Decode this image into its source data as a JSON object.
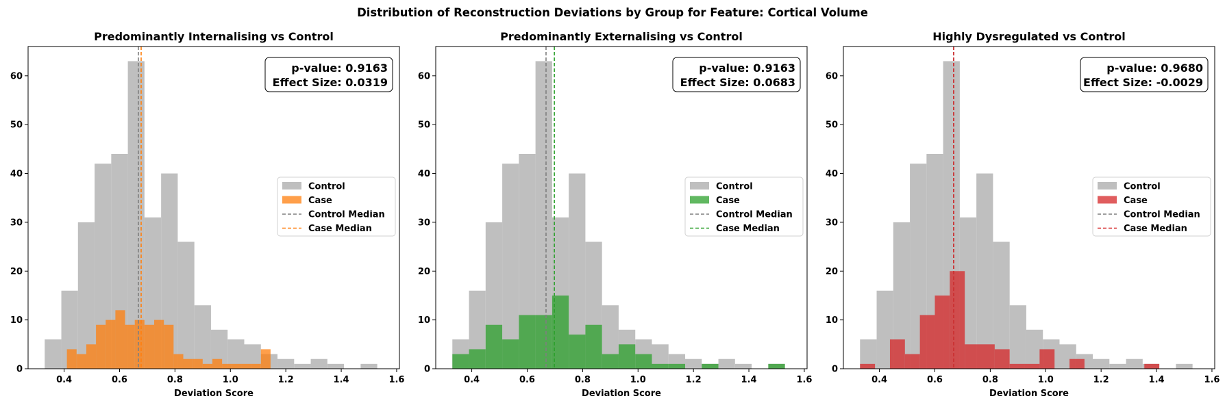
{
  "figure": {
    "suptitle": "Distribution of Reconstruction Deviations by Group for Feature: Cortical Volume"
  },
  "legend_labels": {
    "control": "Control",
    "case": "Case",
    "control_median": "Control Median",
    "case_median": "Case Median"
  },
  "colors": {
    "control": "#bfbfbf",
    "control_median": "#7f7f7f",
    "axes": "#000000"
  },
  "chart_data": [
    {
      "type": "bar",
      "title": "Predominantly Internalising vs Control",
      "xlabel": "Deviation Score",
      "ylabel": "",
      "xlim": [
        0.27,
        1.61
      ],
      "ylim": [
        0,
        66
      ],
      "xticks": [
        "0.4",
        "0.6",
        "0.8",
        "1.0",
        "1.2",
        "1.4",
        "1.6"
      ],
      "yticks": [
        "0",
        "10",
        "20",
        "30",
        "40",
        "50",
        "60"
      ],
      "legend_position": "center-right",
      "case_color": "#ff7f0e",
      "control_hist": {
        "edges": [
          0.33,
          0.39,
          0.45,
          0.51,
          0.57,
          0.63,
          0.69,
          0.75,
          0.81,
          0.87,
          0.93,
          0.99,
          1.05,
          1.11,
          1.17,
          1.23,
          1.29,
          1.35,
          1.41,
          1.47,
          1.53,
          1.59
        ],
        "counts": [
          6,
          16,
          30,
          42,
          44,
          63,
          31,
          40,
          26,
          13,
          8,
          6,
          5,
          3,
          2,
          1,
          2,
          1,
          0,
          1,
          0
        ]
      },
      "case_hist": {
        "edges": [
          0.41,
          0.445,
          0.48,
          0.515,
          0.55,
          0.585,
          0.62,
          0.655,
          0.69,
          0.725,
          0.76,
          0.795,
          0.83,
          0.865,
          0.9,
          0.935,
          0.97,
          1.005,
          1.04,
          1.075,
          1.11,
          1.145
        ],
        "counts": [
          4,
          3,
          5,
          9,
          10,
          12,
          9,
          10,
          9,
          10,
          9,
          3,
          2,
          2,
          1,
          2,
          1,
          1,
          1,
          1,
          4
        ]
      },
      "control_median": 0.668,
      "case_median": 0.678,
      "stats": {
        "p_value": "p-value: 0.9163",
        "effect_size": "Effect Size: 0.0319"
      }
    },
    {
      "type": "bar",
      "title": "Predominantly Externalising vs Control",
      "xlabel": "Deviation Score",
      "ylabel": "",
      "xlim": [
        0.27,
        1.61
      ],
      "ylim": [
        0,
        66
      ],
      "xticks": [
        "0.4",
        "0.6",
        "0.8",
        "1.0",
        "1.2",
        "1.4",
        "1.6"
      ],
      "yticks": [
        "0",
        "10",
        "20",
        "30",
        "40",
        "50",
        "60"
      ],
      "legend_position": "center-right",
      "case_color": "#2ca02c",
      "control_hist": {
        "edges": [
          0.33,
          0.39,
          0.45,
          0.51,
          0.57,
          0.63,
          0.69,
          0.75,
          0.81,
          0.87,
          0.93,
          0.99,
          1.05,
          1.11,
          1.17,
          1.23,
          1.29,
          1.35,
          1.41,
          1.47,
          1.53,
          1.59
        ],
        "counts": [
          6,
          16,
          30,
          42,
          44,
          63,
          31,
          40,
          26,
          13,
          8,
          6,
          5,
          3,
          2,
          1,
          2,
          1,
          0,
          1,
          0
        ]
      },
      "case_hist": {
        "edges": [
          0.33,
          0.39,
          0.45,
          0.51,
          0.57,
          0.63,
          0.69,
          0.75,
          0.81,
          0.87,
          0.93,
          0.99,
          1.05,
          1.11,
          1.17,
          1.23,
          1.29,
          1.35,
          1.41,
          1.47,
          1.53,
          1.59
        ],
        "counts": [
          3,
          4,
          9,
          6,
          11,
          11,
          15,
          7,
          9,
          3,
          5,
          3,
          1,
          1,
          0,
          1,
          0,
          0,
          0,
          1,
          0
        ]
      },
      "control_median": 0.668,
      "case_median": 0.698,
      "stats": {
        "p_value": "p-value: 0.9163",
        "effect_size": "Effect Size: 0.0683"
      }
    },
    {
      "type": "bar",
      "title": "Highly Dysregulated vs Control",
      "xlabel": "Deviation Score",
      "ylabel": "",
      "xlim": [
        0.27,
        1.61
      ],
      "ylim": [
        0,
        66
      ],
      "xticks": [
        "0.4",
        "0.6",
        "0.8",
        "1.0",
        "1.2",
        "1.4",
        "1.6"
      ],
      "yticks": [
        "0",
        "10",
        "20",
        "30",
        "40",
        "50",
        "60"
      ],
      "legend_position": "center-right",
      "case_color": "#d62728",
      "control_hist": {
        "edges": [
          0.33,
          0.39,
          0.45,
          0.51,
          0.57,
          0.63,
          0.69,
          0.75,
          0.81,
          0.87,
          0.93,
          0.99,
          1.05,
          1.11,
          1.17,
          1.23,
          1.29,
          1.35,
          1.41,
          1.47,
          1.53,
          1.59
        ],
        "counts": [
          6,
          16,
          30,
          42,
          44,
          63,
          31,
          40,
          26,
          13,
          8,
          6,
          5,
          3,
          2,
          1,
          2,
          1,
          0,
          1,
          0
        ]
      },
      "case_hist": {
        "edges": [
          0.33,
          0.384,
          0.438,
          0.492,
          0.546,
          0.6,
          0.654,
          0.708,
          0.762,
          0.816,
          0.87,
          0.924,
          0.978,
          1.032,
          1.086,
          1.14,
          1.194,
          1.248,
          1.302,
          1.356,
          1.41
        ],
        "counts": [
          1,
          0,
          6,
          3,
          11,
          15,
          20,
          5,
          5,
          4,
          1,
          1,
          4,
          0,
          2,
          0,
          0,
          0,
          0,
          1
        ]
      },
      "control_median": 0.668,
      "case_median": 0.668,
      "stats": {
        "p_value": "p-value: 0.9680",
        "effect_size": "Effect Size: -0.0029"
      }
    }
  ]
}
